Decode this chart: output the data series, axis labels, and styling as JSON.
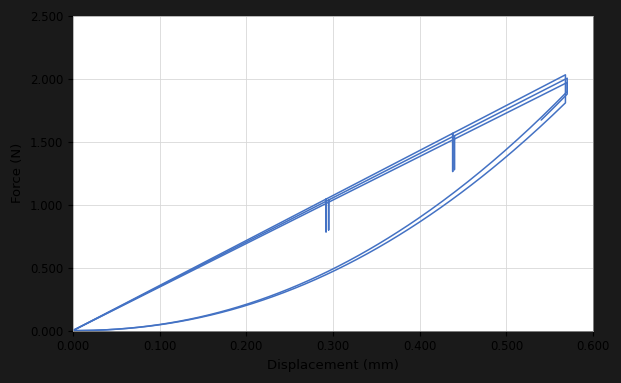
{
  "xlabel": "Displacement (mm)",
  "ylabel": "Force (N)",
  "xlim": [
    0.0,
    0.6
  ],
  "ylim": [
    0.0,
    2.5
  ],
  "xticks": [
    0.0,
    0.1,
    0.2,
    0.3,
    0.4,
    0.5,
    0.6
  ],
  "yticks": [
    0.0,
    0.5,
    1.0,
    1.5,
    2.0,
    2.5
  ],
  "line_color": "#4472C4",
  "line_width": 1.1,
  "background_color": "#ffffff",
  "outer_background": "#1a1a1a",
  "plot_bg": "#f2f2f2",
  "grid_color": "#d8d8d8",
  "tick_label_fontsize": 8.5,
  "axis_label_fontsize": 9.5
}
